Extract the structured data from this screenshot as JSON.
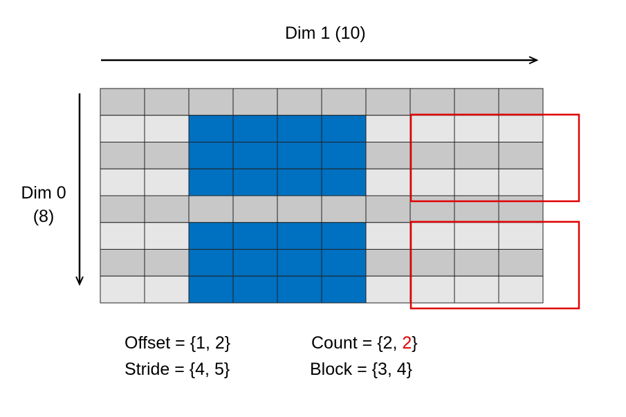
{
  "axes": {
    "dim1_label": "Dim 1 (10)",
    "dim0_label_line1": "Dim 0",
    "dim0_label_line2": "(8)"
  },
  "grid": {
    "rows": 8,
    "cols": 10,
    "selected_blocks": [
      {
        "row_start": 1,
        "row_count": 3,
        "col_start": 2,
        "col_count": 4
      },
      {
        "row_start": 5,
        "row_count": 3,
        "col_start": 2,
        "col_count": 4
      }
    ],
    "out_of_bounds_blocks": [
      {
        "row_start": 1,
        "row_count": 3,
        "col_start": 7
      },
      {
        "row_start": 5,
        "row_count": 3,
        "col_start": 7
      }
    ]
  },
  "colors": {
    "dark_row": "#c8c8c8",
    "light_row": "#e6e6e6",
    "selected": "#0070c0",
    "grid_line": "#222222",
    "outline": "#e00000",
    "highlight_text": "#e00000"
  },
  "params": {
    "offset": "Offset = {1, 2}",
    "stride": "Stride = {4, 5}",
    "count_prefix": "Count = {2, ",
    "count_highlight": "2",
    "count_suffix": "}",
    "block": "Block  = {3, 4}"
  }
}
